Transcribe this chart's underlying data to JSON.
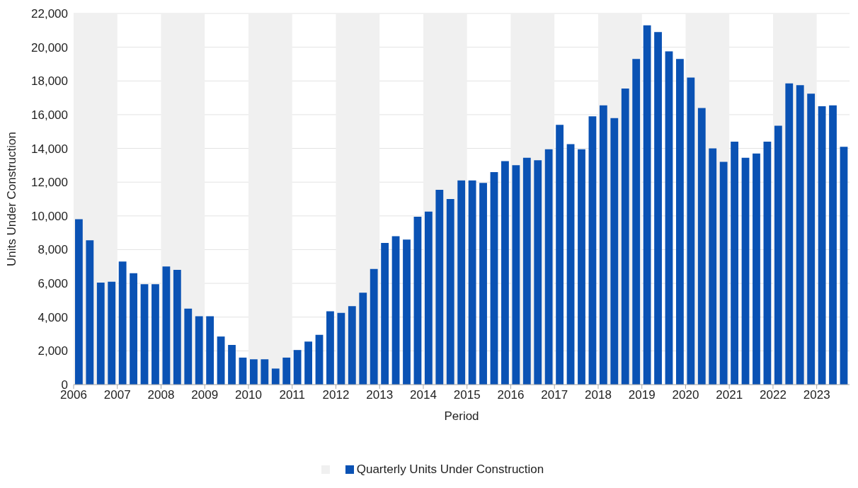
{
  "chart_data": {
    "type": "bar",
    "xlabel": "Period",
    "ylabel": "Units Under Construction",
    "x": [
      2006.125,
      2006.375,
      2006.625,
      2006.875,
      2007.125,
      2007.375,
      2007.625,
      2007.875,
      2008.125,
      2008.375,
      2008.625,
      2008.875,
      2009.125,
      2009.375,
      2009.625,
      2009.875,
      2010.125,
      2010.375,
      2010.625,
      2010.875,
      2011.125,
      2011.375,
      2011.625,
      2011.875,
      2012.125,
      2012.375,
      2012.625,
      2012.875,
      2013.125,
      2013.375,
      2013.625,
      2013.875,
      2014.125,
      2014.375,
      2014.625,
      2014.875,
      2015.125,
      2015.375,
      2015.625,
      2015.875,
      2016.125,
      2016.375,
      2016.625,
      2016.875,
      2017.125,
      2017.375,
      2017.625,
      2017.875,
      2018.125,
      2018.375,
      2018.625,
      2018.875,
      2019.125,
      2019.375,
      2019.625,
      2019.875,
      2020.125,
      2020.375,
      2020.625,
      2020.875,
      2021.125,
      2021.375,
      2021.625,
      2021.875,
      2022.125,
      2022.375,
      2022.625,
      2022.875,
      2023.125,
      2023.375,
      2023.625
    ],
    "series": [
      {
        "name": "Quarterly Units Under Construction",
        "color": "#0a52b4",
        "values": [
          9800,
          8550,
          6050,
          6100,
          7300,
          6600,
          5950,
          5950,
          7000,
          6800,
          4500,
          4050,
          4050,
          2850,
          2350,
          1600,
          1500,
          1500,
          950,
          1600,
          2050,
          2550,
          2950,
          4350,
          4250,
          4650,
          5450,
          6850,
          8400,
          8800,
          8600,
          9950,
          10250,
          11550,
          11000,
          12100,
          12100,
          11950,
          12600,
          13250,
          13000,
          13450,
          13300,
          13950,
          15400,
          14250,
          13950,
          15900,
          16550,
          15800,
          17550,
          19300,
          21300,
          20900,
          19750,
          19300,
          18200,
          16400,
          14000,
          13200,
          14400,
          13450,
          13700,
          14400,
          15350,
          17850,
          17750,
          17250,
          16500,
          16550,
          14100
        ]
      }
    ],
    "xlim": [
      2006,
      2023.75
    ],
    "xticks": [
      2006,
      2007,
      2008,
      2009,
      2010,
      2011,
      2012,
      2013,
      2014,
      2015,
      2016,
      2017,
      2018,
      2019,
      2020,
      2021,
      2022,
      2023
    ],
    "ylim": [
      0,
      22000
    ],
    "yticks": [
      0,
      {
        "value": 2000,
        "label": "2,000"
      },
      {
        "value": 4000,
        "label": "4,000"
      },
      {
        "value": 6000,
        "label": "6,000"
      },
      {
        "value": 8000,
        "label": "8,000"
      },
      {
        "value": 10000,
        "label": "10,000"
      },
      {
        "value": 12000,
        "label": "12,000"
      },
      {
        "value": 14000,
        "label": "14,000"
      },
      {
        "value": 16000,
        "label": "16,000"
      },
      {
        "value": 18000,
        "label": "18,000"
      },
      {
        "value": 20000,
        "label": "20,000"
      },
      {
        "value": 22000,
        "label": "22,000"
      }
    ],
    "bands": [
      {
        "axis": "x",
        "from": 2006,
        "to": 2007,
        "color": "#f0f0f0"
      },
      {
        "axis": "x",
        "from": 2008,
        "to": 2009,
        "color": "#f0f0f0"
      },
      {
        "axis": "x",
        "from": 2010,
        "to": 2011,
        "color": "#f0f0f0"
      },
      {
        "axis": "x",
        "from": 2012,
        "to": 2013,
        "color": "#f0f0f0"
      },
      {
        "axis": "x",
        "from": 2014,
        "to": 2015,
        "color": "#f0f0f0"
      },
      {
        "axis": "x",
        "from": 2016,
        "to": 2017,
        "color": "#f0f0f0"
      },
      {
        "axis": "x",
        "from": 2018,
        "to": 2019,
        "color": "#f0f0f0"
      },
      {
        "axis": "x",
        "from": 2020,
        "to": 2021,
        "color": "#f0f0f0"
      },
      {
        "axis": "x",
        "from": 2022,
        "to": 2023,
        "color": "#f0f0f0"
      }
    ],
    "grid": "y",
    "legend": "bottom"
  }
}
